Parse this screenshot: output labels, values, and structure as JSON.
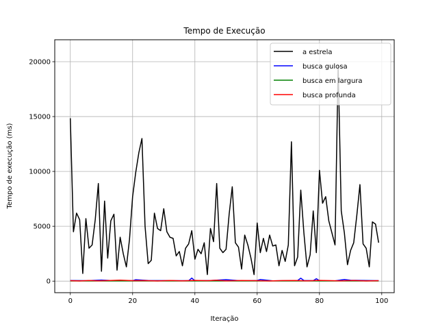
{
  "chart_data": {
    "type": "line",
    "title": "Tempo de Execução",
    "xlabel": "Iteração",
    "ylabel": "Tempo de execução (ms)",
    "xlim": [
      -5,
      104
    ],
    "ylim": [
      -1050,
      22000
    ],
    "xticks": [
      0,
      20,
      40,
      60,
      80,
      100
    ],
    "yticks": [
      0,
      5000,
      10000,
      15000,
      20000
    ],
    "grid": true,
    "legend_position": "top-right",
    "series": [
      {
        "name": "a estrela",
        "color": "#000000",
        "x": [
          0,
          1,
          2,
          3,
          4,
          5,
          6,
          7,
          8,
          9,
          10,
          11,
          12,
          13,
          14,
          15,
          16,
          17,
          18,
          19,
          20,
          21,
          22,
          23,
          24,
          25,
          26,
          27,
          28,
          29,
          30,
          31,
          32,
          33,
          34,
          35,
          36,
          37,
          38,
          39,
          40,
          41,
          42,
          43,
          44,
          45,
          46,
          47,
          48,
          49,
          50,
          51,
          52,
          53,
          54,
          55,
          56,
          57,
          58,
          59,
          60,
          61,
          62,
          63,
          64,
          65,
          66,
          67,
          68,
          69,
          70,
          71,
          72,
          73,
          74,
          75,
          76,
          77,
          78,
          79,
          80,
          81,
          82,
          83,
          84,
          85,
          86,
          87,
          88,
          89,
          90,
          91,
          92,
          93,
          94,
          95,
          96,
          97,
          98,
          99
        ],
        "values": [
          14850,
          4500,
          6200,
          5600,
          700,
          5700,
          3000,
          3300,
          5600,
          8900,
          900,
          7300,
          2100,
          5500,
          6100,
          1000,
          4000,
          2500,
          1300,
          3800,
          7700,
          9900,
          11700,
          13000,
          5000,
          1600,
          1900,
          6200,
          4800,
          4600,
          6600,
          4500,
          4000,
          3900,
          2300,
          2700,
          1400,
          3000,
          3400,
          4600,
          2000,
          2900,
          2500,
          3500,
          600,
          4800,
          3600,
          8900,
          3000,
          2600,
          2900,
          6100,
          8600,
          3500,
          3100,
          1100,
          4200,
          3300,
          2100,
          600,
          5300,
          2600,
          3900,
          2700,
          4200,
          3200,
          3300,
          1400,
          2800,
          1800,
          3300,
          12700,
          1400,
          2200,
          8300,
          4400,
          1300,
          2400,
          6400,
          2600,
          10100,
          7100,
          7700,
          5500,
          4400,
          3300,
          19700,
          6400,
          4400,
          1500,
          2800,
          3500,
          6000,
          8800,
          3400,
          3000,
          1300,
          5400,
          5200,
          3500
        ]
      },
      {
        "name": "busca gulosa",
        "color": "#0000ff",
        "x": [
          0,
          5,
          10,
          15,
          20,
          21,
          25,
          30,
          35,
          38,
          39,
          40,
          45,
          50,
          55,
          60,
          61,
          65,
          70,
          73,
          74,
          75,
          78,
          79,
          80,
          85,
          88,
          90,
          95,
          99
        ],
        "values": [
          60,
          40,
          100,
          30,
          40,
          130,
          60,
          50,
          40,
          40,
          280,
          40,
          60,
          140,
          30,
          60,
          150,
          30,
          40,
          60,
          270,
          60,
          40,
          220,
          40,
          30,
          150,
          80,
          60,
          40
        ]
      },
      {
        "name": "busca em largura",
        "color": "#008000",
        "x": [
          0,
          10,
          20,
          30,
          40,
          50,
          60,
          70,
          80,
          90,
          99
        ],
        "values": [
          20,
          20,
          20,
          20,
          20,
          20,
          20,
          20,
          20,
          20,
          20
        ]
      },
      {
        "name": "busca profunda",
        "color": "#ff0000",
        "x": [
          0,
          3,
          6,
          9,
          12,
          16,
          20,
          24,
          28,
          32,
          36,
          40,
          44,
          47,
          50,
          55,
          60,
          64,
          68,
          72,
          76,
          80,
          84,
          87,
          91,
          95,
          99
        ],
        "values": [
          40,
          20,
          60,
          30,
          50,
          90,
          40,
          50,
          20,
          60,
          30,
          70,
          40,
          80,
          30,
          60,
          40,
          20,
          50,
          60,
          30,
          70,
          40,
          30,
          60,
          20,
          40
        ]
      }
    ]
  }
}
